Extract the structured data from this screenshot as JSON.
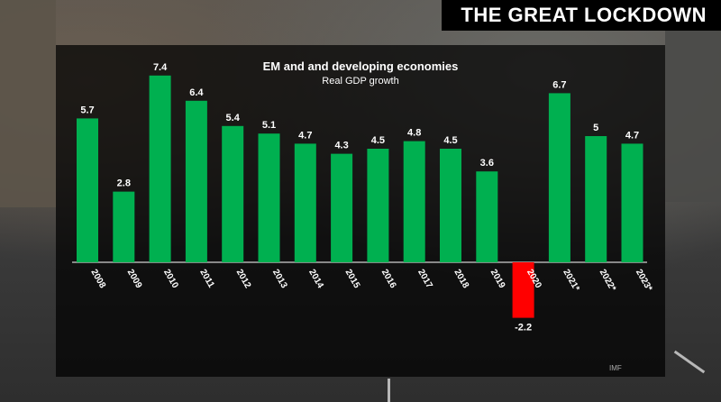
{
  "header": {
    "banner_title": "THE GREAT LOCKDOWN"
  },
  "source_label": "IMF",
  "colors": {
    "positive": "#00b050",
    "negative": "#ff0000",
    "panel": "#000000",
    "text": "#ffffff"
  },
  "chart_data": {
    "type": "bar",
    "title": "EM and and developing economies",
    "subtitle": "Real GDP growth",
    "categories": [
      "2008",
      "2009",
      "2010",
      "2011",
      "2012",
      "2013",
      "2014",
      "2015",
      "2016",
      "2017",
      "2018",
      "2019",
      "2020",
      "2021*",
      "2022*",
      "2023*"
    ],
    "values": [
      5.7,
      2.8,
      7.4,
      6.4,
      5.4,
      5.1,
      4.7,
      4.3,
      4.5,
      4.8,
      4.5,
      3.6,
      -2.2,
      6.7,
      5,
      4.7
    ],
    "data_labels": [
      "5.7",
      "2.8",
      "7.4",
      "6.4",
      "5.4",
      "5.1",
      "4.7",
      "4.3",
      "4.5",
      "4.8",
      "4.5",
      "3.6",
      "-2.2",
      "6.7",
      "5",
      "4.7"
    ],
    "xlabel": "",
    "ylabel": "",
    "ylim": [
      -2.2,
      7.4
    ],
    "grid": false,
    "legend": "none"
  }
}
